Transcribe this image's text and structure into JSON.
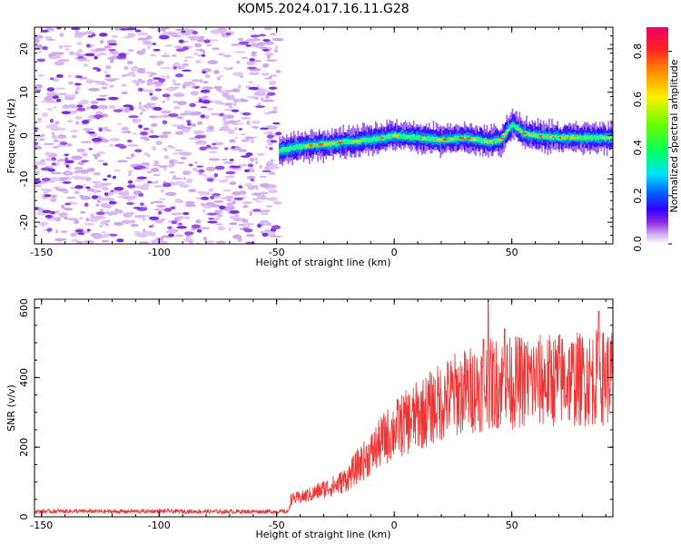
{
  "title": "KOM5.2024.017.16.11.G28",
  "chart_data": [
    {
      "type": "heatmap",
      "title": "KOM5.2024.017.16.11.G28",
      "xlabel": "Height of straight line (km)",
      "ylabel": "Frequency (Hz)",
      "xlim": [
        -153,
        93
      ],
      "ylim": [
        -25,
        25
      ],
      "xticks": [
        -150,
        -100,
        -50,
        0,
        50
      ],
      "yticks": [
        -20,
        -10,
        0,
        10,
        20
      ],
      "colorbar": {
        "label": "Normalized spectral amplitude",
        "range": [
          0,
          0.9
        ],
        "ticks": [
          0.0,
          0.2,
          0.4,
          0.6,
          0.8
        ]
      },
      "noise_region_x": [
        -153,
        -49
      ],
      "signal_track": {
        "x": [
          -49,
          -40,
          -30,
          -20,
          -10,
          0,
          10,
          20,
          30,
          40,
          45,
          50,
          55,
          60,
          70,
          80,
          90,
          93
        ],
        "y": [
          -3.5,
          -2.5,
          -2,
          -1.5,
          -1,
          0,
          -0.5,
          -1,
          -0.5,
          -1.5,
          -1,
          2.5,
          0.5,
          0,
          -0.5,
          -0.5,
          -0.5,
          -0.5
        ]
      },
      "grid": false
    },
    {
      "type": "line",
      "xlabel": "Height of straight line (km)",
      "ylabel": "SNR (v/v)",
      "xlim": [
        -153,
        93
      ],
      "ylim": [
        0,
        625
      ],
      "xticks": [
        -150,
        -100,
        -50,
        0,
        50
      ],
      "yticks": [
        0,
        200,
        400,
        600
      ],
      "color": "#ee3333",
      "x": [
        -153,
        -140,
        -120,
        -100,
        -80,
        -60,
        -50,
        -45,
        -44,
        -40,
        -35,
        -30,
        -25,
        -20,
        -15,
        -10,
        -5,
        0,
        5,
        10,
        15,
        20,
        25,
        30,
        35,
        40,
        45,
        50,
        55,
        60,
        65,
        70,
        75,
        80,
        85,
        90,
        93
      ],
      "y": [
        15,
        16,
        15,
        16,
        15,
        15,
        15,
        15,
        50,
        55,
        65,
        80,
        90,
        110,
        150,
        180,
        220,
        250,
        270,
        290,
        310,
        330,
        350,
        360,
        370,
        380,
        385,
        385,
        390,
        390,
        390,
        395,
        395,
        395,
        400,
        400,
        405
      ],
      "peaks": {
        "x": [
          38,
          40,
          47,
          56,
          70,
          87
        ],
        "y": [
          510,
          620,
          540,
          490,
          520,
          590
        ]
      },
      "grid": false
    }
  ]
}
